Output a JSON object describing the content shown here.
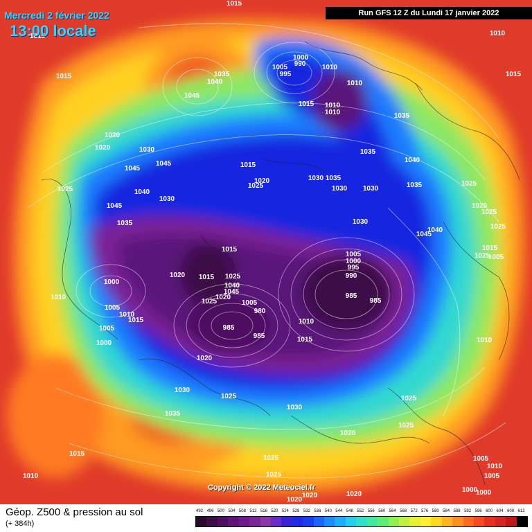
{
  "header": {
    "date": "Mercredi 2 février 2022",
    "time": "13:00 locale",
    "run": "Run GFS 12 Z du Lundi 17 janvier 2022"
  },
  "copyright": "Copyright © 2022 Meteociel.fr",
  "legend": {
    "title": "Géop. Z500 & pression au sol",
    "subtitle": "(+ 384h)",
    "scale_values": [
      "492",
      "496",
      "500",
      "504",
      "508",
      "512",
      "516",
      "520",
      "524",
      "528",
      "532",
      "536",
      "540",
      "544",
      "548",
      "552",
      "556",
      "560",
      "564",
      "568",
      "572",
      "576",
      "580",
      "584",
      "588",
      "592",
      "596",
      "600",
      "604",
      "608",
      "612"
    ],
    "scale_colors": [
      "#2a0a2a",
      "#3c0d46",
      "#4d1060",
      "#5e1478",
      "#6e1a8c",
      "#7a2496",
      "#8b37a6",
      "#6a2cc8",
      "#3a22d8",
      "#1c2ee0",
      "#1440f0",
      "#1a66ff",
      "#1d8cff",
      "#1ab0ff",
      "#20d0f0",
      "#30e0c8",
      "#40e8a0",
      "#60ec70",
      "#90f050",
      "#c0f040",
      "#e8f030",
      "#fff030",
      "#ffd820",
      "#ffb420",
      "#ff9020",
      "#ff6a20",
      "#f84a20",
      "#e83022",
      "#d42424",
      "#c01818",
      "#000000"
    ]
  },
  "pressure_labels": [
    {
      "text": "1015",
      "pos": [
        338,
        8
      ]
    },
    {
      "text": "1015",
      "pos": [
        54,
        55
      ]
    },
    {
      "text": "1015",
      "pos": [
        92,
        113
      ]
    },
    {
      "text": "1035",
      "pos": [
        320,
        110
      ]
    },
    {
      "text": "1040",
      "pos": [
        310,
        121
      ]
    },
    {
      "text": "1045",
      "pos": [
        277,
        141
      ]
    },
    {
      "text": "1020",
      "pos": [
        162,
        198
      ]
    },
    {
      "text": "1020",
      "pos": [
        148,
        216
      ]
    },
    {
      "text": "1030",
      "pos": [
        212,
        219
      ]
    },
    {
      "text": "1045",
      "pos": [
        236,
        239
      ]
    },
    {
      "text": "1045",
      "pos": [
        191,
        246
      ]
    },
    {
      "text": "1025",
      "pos": [
        94,
        276
      ]
    },
    {
      "text": "1040",
      "pos": [
        205,
        280
      ]
    },
    {
      "text": "1030",
      "pos": [
        241,
        290
      ]
    },
    {
      "text": "1045",
      "pos": [
        165,
        300
      ]
    },
    {
      "text": "1035",
      "pos": [
        180,
        325
      ]
    },
    {
      "text": "1000",
      "pos": [
        434,
        86
      ]
    },
    {
      "text": "990",
      "pos": [
        433,
        95
      ]
    },
    {
      "text": "1005",
      "pos": [
        404,
        100
      ]
    },
    {
      "text": "1010",
      "pos": [
        476,
        100
      ]
    },
    {
      "text": "995",
      "pos": [
        412,
        110
      ]
    },
    {
      "text": "1010",
      "pos": [
        512,
        123
      ]
    },
    {
      "text": "1015",
      "pos": [
        442,
        153
      ]
    },
    {
      "text": "1010",
      "pos": [
        480,
        155
      ]
    },
    {
      "text": "1010",
      "pos": [
        480,
        165
      ]
    },
    {
      "text": "1035",
      "pos": [
        580,
        170
      ]
    },
    {
      "text": "1035",
      "pos": [
        531,
        222
      ]
    },
    {
      "text": "1040",
      "pos": [
        595,
        234
      ]
    },
    {
      "text": "1015",
      "pos": [
        358,
        241
      ]
    },
    {
      "text": "1020",
      "pos": [
        378,
        264
      ]
    },
    {
      "text": "1025",
      "pos": [
        369,
        271
      ]
    },
    {
      "text": "1030",
      "pos": [
        456,
        260
      ]
    },
    {
      "text": "1035",
      "pos": [
        481,
        260
      ]
    },
    {
      "text": "1030",
      "pos": [
        490,
        275
      ]
    },
    {
      "text": "1030",
      "pos": [
        535,
        275
      ]
    },
    {
      "text": "1035",
      "pos": [
        598,
        270
      ]
    },
    {
      "text": "1025",
      "pos": [
        677,
        268
      ]
    },
    {
      "text": "1020",
      "pos": [
        692,
        300
      ]
    },
    {
      "text": "1025",
      "pos": [
        706,
        309
      ]
    },
    {
      "text": "1030",
      "pos": [
        520,
        323
      ]
    },
    {
      "text": "1025",
      "pos": [
        719,
        330
      ]
    },
    {
      "text": "1040",
      "pos": [
        628,
        335
      ]
    },
    {
      "text": "1045",
      "pos": [
        612,
        341
      ]
    },
    {
      "text": "1015",
      "pos": [
        331,
        363
      ]
    },
    {
      "text": "1015",
      "pos": [
        707,
        361
      ]
    },
    {
      "text": "1025",
      "pos": [
        696,
        372
      ]
    },
    {
      "text": "1005",
      "pos": [
        510,
        370
      ]
    },
    {
      "text": "1000",
      "pos": [
        510,
        380
      ]
    },
    {
      "text": "995",
      "pos": [
        510,
        389
      ]
    },
    {
      "text": "990",
      "pos": [
        507,
        401
      ]
    },
    {
      "text": "1020",
      "pos": [
        256,
        400
      ]
    },
    {
      "text": "1015",
      "pos": [
        298,
        403
      ]
    },
    {
      "text": "1025",
      "pos": [
        336,
        402
      ]
    },
    {
      "text": "1040",
      "pos": [
        335,
        415
      ]
    },
    {
      "text": "1045",
      "pos": [
        334,
        424
      ]
    },
    {
      "text": "1000",
      "pos": [
        161,
        410
      ]
    },
    {
      "text": "1010",
      "pos": [
        84,
        432
      ]
    },
    {
      "text": "1020",
      "pos": [
        322,
        432
      ]
    },
    {
      "text": "1025",
      "pos": [
        302,
        438
      ]
    },
    {
      "text": "1005",
      "pos": [
        360,
        440
      ]
    },
    {
      "text": "980",
      "pos": [
        375,
        452
      ]
    },
    {
      "text": "985",
      "pos": [
        507,
        430
      ]
    },
    {
      "text": "985",
      "pos": [
        542,
        437
      ]
    },
    {
      "text": "1005",
      "pos": [
        162,
        447
      ]
    },
    {
      "text": "1010",
      "pos": [
        183,
        457
      ]
    },
    {
      "text": "1015",
      "pos": [
        196,
        465
      ]
    },
    {
      "text": "1010",
      "pos": [
        442,
        467
      ]
    },
    {
      "text": "1005",
      "pos": [
        154,
        477
      ]
    },
    {
      "text": "985",
      "pos": [
        330,
        476
      ]
    },
    {
      "text": "985",
      "pos": [
        374,
        488
      ]
    },
    {
      "text": "1015",
      "pos": [
        440,
        493
      ]
    },
    {
      "text": "1000",
      "pos": [
        150,
        498
      ]
    },
    {
      "text": "1010",
      "pos": [
        699,
        494
      ]
    },
    {
      "text": "1020",
      "pos": [
        295,
        520
      ]
    },
    {
      "text": "1030",
      "pos": [
        263,
        566
      ]
    },
    {
      "text": "1025",
      "pos": [
        330,
        575
      ]
    },
    {
      "text": "1025",
      "pos": [
        590,
        578
      ]
    },
    {
      "text": "1030",
      "pos": [
        425,
        591
      ]
    },
    {
      "text": "1035",
      "pos": [
        249,
        600
      ]
    },
    {
      "text": "1025",
      "pos": [
        586,
        617
      ]
    },
    {
      "text": "1020",
      "pos": [
        502,
        628
      ]
    },
    {
      "text": "1015",
      "pos": [
        111,
        658
      ]
    },
    {
      "text": "1025",
      "pos": [
        391,
        664
      ]
    },
    {
      "text": "1005",
      "pos": [
        694,
        665
      ]
    },
    {
      "text": "1010",
      "pos": [
        714,
        676
      ]
    },
    {
      "text": "1010",
      "pos": [
        44,
        690
      ]
    },
    {
      "text": "1025",
      "pos": [
        395,
        688
      ]
    },
    {
      "text": "1005",
      "pos": [
        710,
        690
      ]
    },
    {
      "text": "1000",
      "pos": [
        678,
        710
      ]
    },
    {
      "text": "1000",
      "pos": [
        698,
        714
      ]
    },
    {
      "text": "1020",
      "pos": [
        511,
        716
      ]
    },
    {
      "text": "1020",
      "pos": [
        447,
        718
      ]
    },
    {
      "text": "1020",
      "pos": [
        425,
        724
      ]
    },
    {
      "text": "1010",
      "pos": [
        718,
        51
      ]
    },
    {
      "text": "1015",
      "pos": [
        741,
        110
      ]
    },
    {
      "text": "1005",
      "pos": [
        716,
        374
      ]
    }
  ]
}
